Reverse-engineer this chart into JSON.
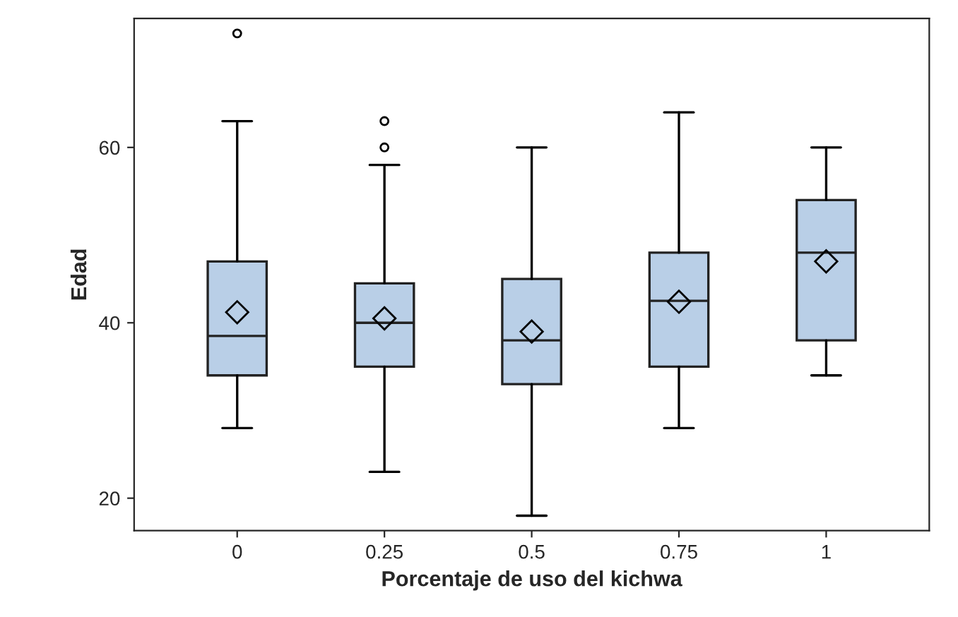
{
  "chart_data": {
    "type": "box",
    "xlabel": "Porcentaje de uso del kichwa",
    "ylabel": "Edad",
    "categories": [
      "0",
      "0.25",
      "0.5",
      "0.75",
      "1"
    ],
    "color": "#b9cfe7",
    "boxes": [
      {
        "low": 28,
        "q1": 34,
        "median": 38.5,
        "q3": 47,
        "high": 63,
        "mean": 41.2,
        "outliers": [
          73
        ]
      },
      {
        "low": 23,
        "q1": 35,
        "median": 40,
        "q3": 44.5,
        "high": 58,
        "mean": 40.5,
        "outliers": [
          60,
          63
        ]
      },
      {
        "low": 18,
        "q1": 33,
        "median": 38,
        "q3": 45,
        "high": 60,
        "mean": 39
      },
      {
        "low": 28,
        "q1": 35,
        "median": 42.5,
        "q3": 48,
        "high": 64,
        "mean": 42.4
      },
      {
        "low": 34,
        "q1": 38,
        "median": 48,
        "q3": 54,
        "high": 60,
        "mean": 47
      }
    ],
    "ylim": [
      16.3,
      74.7
    ],
    "yticks": [
      20,
      40,
      60
    ],
    "grid": false
  }
}
